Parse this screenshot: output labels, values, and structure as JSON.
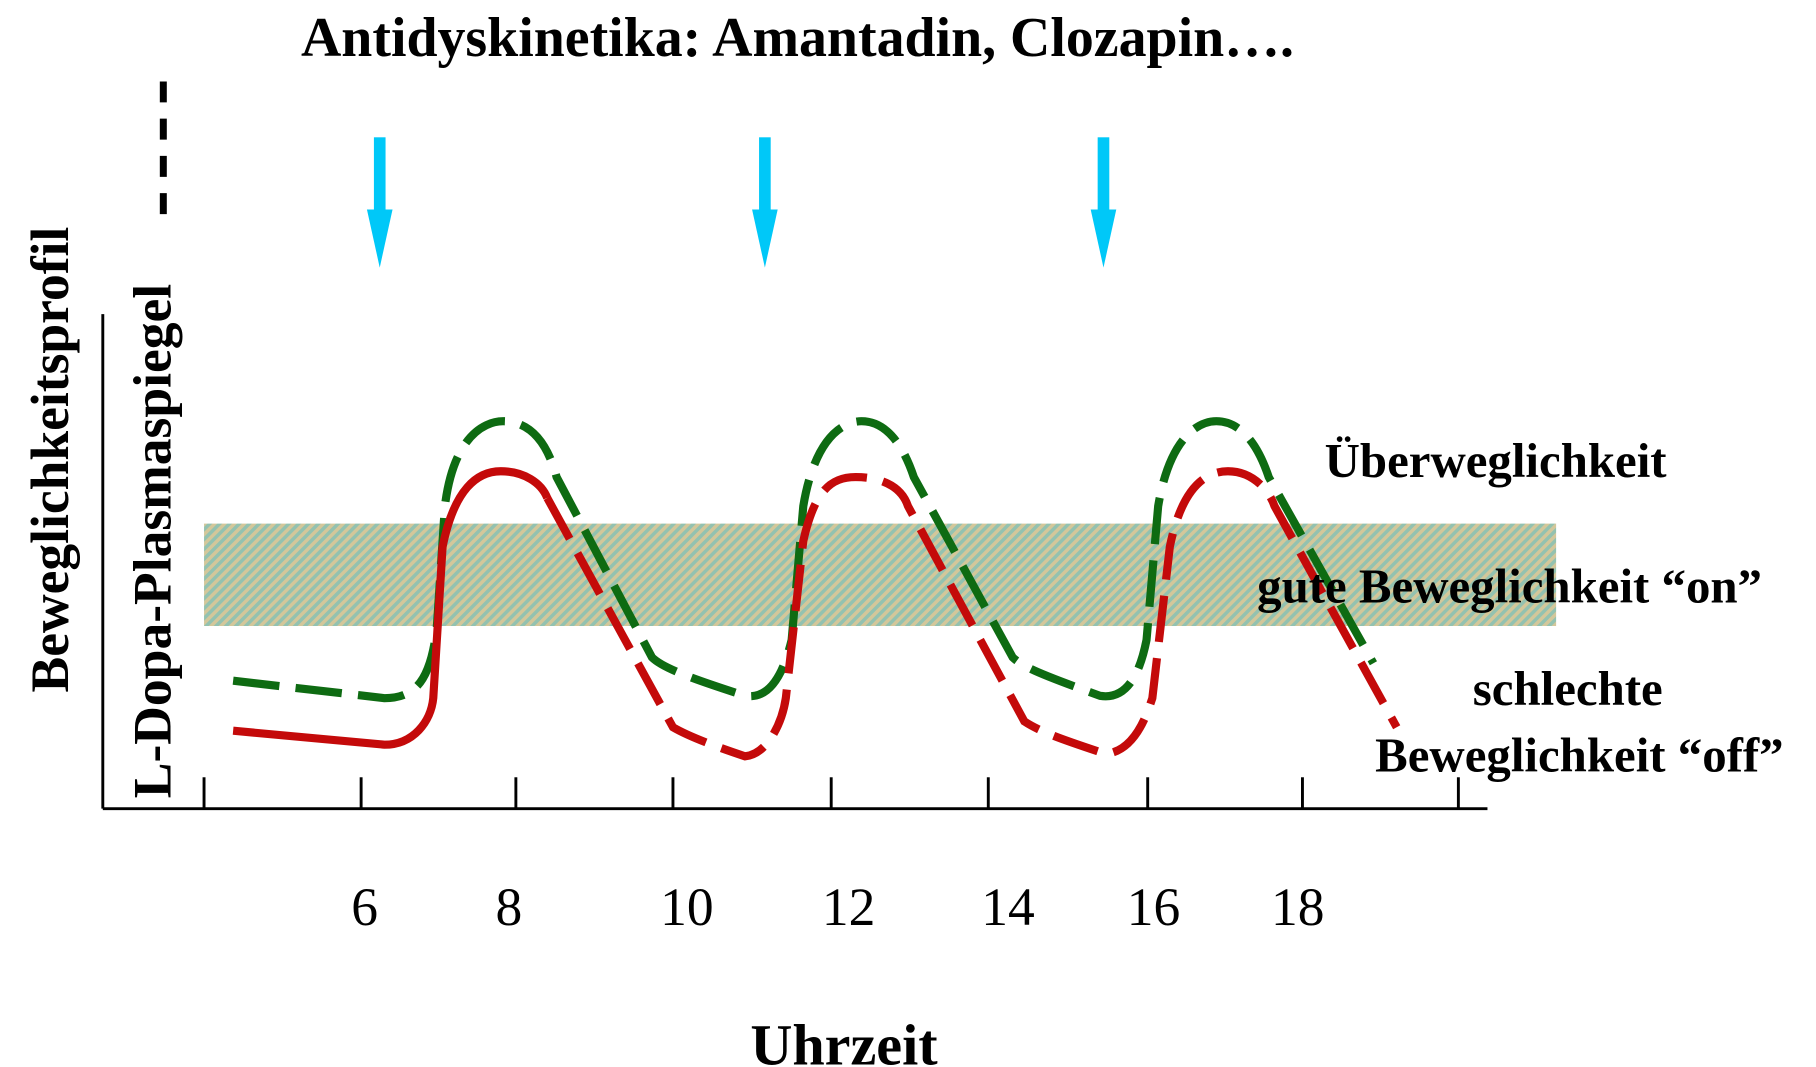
{
  "title": "Antidyskinetika:  Amantadin, Clozapin….",
  "y_axis_labels": [
    "Beweglichkeitsprofil",
    "L-Dopa-Plasmaspiegel"
  ],
  "x_axis": {
    "label": "Uhrzeit",
    "tick_labels": [
      "6",
      "8",
      "10",
      "12",
      "14",
      "16",
      "18"
    ]
  },
  "zones": {
    "over": "Überweglichkeit",
    "on": "gute Beweglichkeit “on”",
    "off": [
      "schlechte",
      "Beweglichkeit “off”"
    ]
  }
}
